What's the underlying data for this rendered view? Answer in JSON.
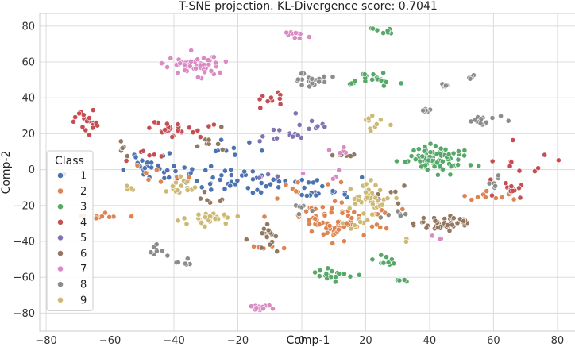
{
  "chart_data": {
    "type": "scatter",
    "title": "T-SNE projection. KL-Divergence score: 0.7041",
    "xlabel": "Comp-1",
    "ylabel": "Comp-2",
    "xlim": [
      -82,
      86
    ],
    "ylim": [
      -90,
      87
    ],
    "xticks": [
      -80,
      -60,
      -40,
      -20,
      0,
      20,
      40,
      60,
      80
    ],
    "yticks": [
      -80,
      -60,
      -40,
      -20,
      0,
      20,
      40,
      60,
      80
    ],
    "grid": true,
    "legend": {
      "title": "Class",
      "placement": "center-left"
    },
    "series": [
      {
        "name": "1",
        "color": "#4c72b0",
        "clusters": [
          {
            "x": -45,
            "y": 0,
            "n": 18,
            "sx": 6,
            "sy": 3
          },
          {
            "x": -33,
            "y": -4,
            "n": 16,
            "sx": 6,
            "sy": 3
          },
          {
            "x": -20,
            "y": -6,
            "n": 20,
            "sx": 7,
            "sy": 4
          },
          {
            "x": -6,
            "y": -8,
            "n": 20,
            "sx": 7,
            "sy": 3
          },
          {
            "x": 6,
            "y": -13,
            "n": 14,
            "sx": 4,
            "sy": 2
          },
          {
            "x": -47,
            "y": 8,
            "n": 8,
            "sx": 5,
            "sy": 3
          },
          {
            "x": -22,
            "y": 10,
            "n": 8,
            "sx": 5,
            "sy": 4
          },
          {
            "x": -74,
            "y": -3,
            "n": 2,
            "sx": 1,
            "sy": 1
          }
        ]
      },
      {
        "name": "2",
        "color": "#dd8452",
        "clusters": [
          {
            "x": 10,
            "y": -31,
            "n": 40,
            "sx": 4,
            "sy": 4
          },
          {
            "x": 4,
            "y": -25,
            "n": 12,
            "sx": 4,
            "sy": 3
          },
          {
            "x": 16,
            "y": -24,
            "n": 12,
            "sx": 5,
            "sy": 4
          },
          {
            "x": -63,
            "y": -26,
            "n": 10,
            "sx": 4,
            "sy": 1
          },
          {
            "x": 58,
            "y": -16,
            "n": 10,
            "sx": 5,
            "sy": 2
          },
          {
            "x": 26,
            "y": -30,
            "n": 6,
            "sx": 3,
            "sy": 3
          },
          {
            "x": -10,
            "y": -43,
            "n": 6,
            "sx": 3,
            "sy": 1
          },
          {
            "x": 2,
            "y": -8,
            "n": 8,
            "sx": 5,
            "sy": 3
          },
          {
            "x": -44,
            "y": -3,
            "n": 8,
            "sx": 5,
            "sy": 3
          }
        ]
      },
      {
        "name": "3",
        "color": "#55a868",
        "clusters": [
          {
            "x": 42,
            "y": 6,
            "n": 80,
            "sx": 5,
            "sy": 4
          },
          {
            "x": 22,
            "y": 50,
            "n": 25,
            "sx": 3,
            "sy": 2
          },
          {
            "x": 26,
            "y": 77,
            "n": 10,
            "sx": 2,
            "sy": 1
          },
          {
            "x": 9,
            "y": -58,
            "n": 18,
            "sx": 3,
            "sy": 2
          },
          {
            "x": 25,
            "y": -51,
            "n": 10,
            "sx": 2,
            "sy": 2
          },
          {
            "x": 30,
            "y": -62,
            "n": 4,
            "sx": 1,
            "sy": 1
          }
        ]
      },
      {
        "name": "4",
        "color": "#c44e52",
        "clusters": [
          {
            "x": -67,
            "y": 26,
            "n": 18,
            "sx": 2,
            "sy": 3
          },
          {
            "x": -35,
            "y": 22,
            "n": 16,
            "sx": 5,
            "sy": 3
          },
          {
            "x": -43,
            "y": 23,
            "n": 10,
            "sx": 3,
            "sy": 2
          },
          {
            "x": -9,
            "y": 40,
            "n": 10,
            "sx": 4,
            "sy": 2
          },
          {
            "x": 69,
            "y": 0,
            "n": 16,
            "sx": 5,
            "sy": 6
          },
          {
            "x": 66,
            "y": -11,
            "n": 10,
            "sx": 1,
            "sy": 2
          },
          {
            "x": -50,
            "y": 8,
            "n": 6,
            "sx": 3,
            "sy": 2
          }
        ]
      },
      {
        "name": "5",
        "color": "#8172b3",
        "clusters": [
          {
            "x": -6,
            "y": 19,
            "n": 12,
            "sx": 4,
            "sy": 2
          },
          {
            "x": 4,
            "y": 25,
            "n": 8,
            "sx": 2,
            "sy": 2
          },
          {
            "x": -9,
            "y": -3,
            "n": 4,
            "sx": 2,
            "sy": 2
          }
        ]
      },
      {
        "name": "6",
        "color": "#937860",
        "clusters": [
          {
            "x": 44,
            "y": -30,
            "n": 45,
            "sx": 4,
            "sy": 2
          },
          {
            "x": -10,
            "y": -36,
            "n": 10,
            "sx": 2,
            "sy": 3
          },
          {
            "x": -10,
            "y": -43,
            "n": 6,
            "sx": 3,
            "sy": 2
          },
          {
            "x": -28,
            "y": 17,
            "n": 8,
            "sx": 2,
            "sy": 4
          },
          {
            "x": 12,
            "y": 8,
            "n": 8,
            "sx": 3,
            "sy": 1
          },
          {
            "x": -56,
            "y": 13,
            "n": 6,
            "sx": 2,
            "sy": 2
          },
          {
            "x": 26,
            "y": -14,
            "n": 8,
            "sx": 4,
            "sy": 3
          },
          {
            "x": -28,
            "y": -15,
            "n": 6,
            "sx": 2,
            "sy": 2
          }
        ]
      },
      {
        "name": "7",
        "color": "#da8bc3",
        "clusters": [
          {
            "x": -32,
            "y": 58,
            "n": 50,
            "sx": 5,
            "sy": 3
          },
          {
            "x": -2,
            "y": 75,
            "n": 12,
            "sx": 2,
            "sy": 1
          },
          {
            "x": -13,
            "y": -77,
            "n": 14,
            "sx": 2,
            "sy": 1
          },
          {
            "x": 14,
            "y": 10,
            "n": 5,
            "sx": 3,
            "sy": 2
          },
          {
            "x": 5,
            "y": -3,
            "n": 4,
            "sx": 3,
            "sy": 2
          },
          {
            "x": 42,
            "y": -38,
            "n": 3,
            "sx": 1,
            "sy": 1
          }
        ]
      },
      {
        "name": "8",
        "color": "#8c8c8c",
        "clusters": [
          {
            "x": 3,
            "y": 50,
            "n": 22,
            "sx": 3,
            "sy": 2
          },
          {
            "x": -45,
            "y": -45,
            "n": 10,
            "sx": 2,
            "sy": 2
          },
          {
            "x": -37,
            "y": -52,
            "n": 8,
            "sx": 2,
            "sy": 1
          },
          {
            "x": 58,
            "y": 28,
            "n": 14,
            "sx": 3,
            "sy": 2
          },
          {
            "x": 39,
            "y": 33,
            "n": 8,
            "sx": 1,
            "sy": 1
          },
          {
            "x": 45,
            "y": 47,
            "n": 6,
            "sx": 1,
            "sy": 1
          },
          {
            "x": 52,
            "y": 51,
            "n": 4,
            "sx": 1,
            "sy": 1
          },
          {
            "x": 60,
            "y": -7,
            "n": 6,
            "sx": 2,
            "sy": 2
          },
          {
            "x": 29,
            "y": -24,
            "n": 6,
            "sx": 3,
            "sy": 2
          },
          {
            "x": 0,
            "y": -20,
            "n": 6,
            "sx": 2,
            "sy": 2
          }
        ]
      },
      {
        "name": "9",
        "color": "#ccb974",
        "clusters": [
          {
            "x": 21,
            "y": -16,
            "n": 40,
            "sx": 4,
            "sy": 4
          },
          {
            "x": -28,
            "y": -27,
            "n": 30,
            "sx": 4,
            "sy": 2
          },
          {
            "x": -38,
            "y": -11,
            "n": 12,
            "sx": 2,
            "sy": 2
          },
          {
            "x": 22,
            "y": 26,
            "n": 10,
            "sx": 2,
            "sy": 2
          },
          {
            "x": -54,
            "y": -10,
            "n": 4,
            "sx": 1,
            "sy": 1
          },
          {
            "x": 16,
            "y": -30,
            "n": 8,
            "sx": 3,
            "sy": 3
          },
          {
            "x": -38,
            "y": -4,
            "n": 3,
            "sx": 2,
            "sy": 2
          },
          {
            "x": 33,
            "y": -38,
            "n": 2,
            "sx": 1,
            "sy": 1
          }
        ]
      }
    ]
  }
}
